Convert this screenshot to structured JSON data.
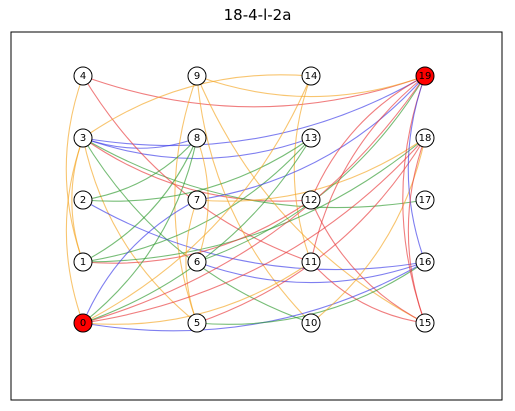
{
  "title": "18-4-l-2a",
  "colors": {
    "red": "#e8393b",
    "blue": "#3a3ae8",
    "green": "#2e9a2e",
    "orange": "#f5a623",
    "highlight_node": "#ff0000"
  },
  "nodes": [
    {
      "id": "0",
      "highlight": true
    },
    {
      "id": "1"
    },
    {
      "id": "2"
    },
    {
      "id": "3"
    },
    {
      "id": "4"
    },
    {
      "id": "5"
    },
    {
      "id": "6"
    },
    {
      "id": "7"
    },
    {
      "id": "8"
    },
    {
      "id": "9"
    },
    {
      "id": "10"
    },
    {
      "id": "11"
    },
    {
      "id": "12"
    },
    {
      "id": "13"
    },
    {
      "id": "14"
    },
    {
      "id": "15"
    },
    {
      "id": "16"
    },
    {
      "id": "17"
    },
    {
      "id": "18"
    },
    {
      "id": "19",
      "highlight": true
    }
  ],
  "edges": [
    {
      "from": "3",
      "to": "19",
      "color": "blue"
    },
    {
      "from": "3",
      "to": "8",
      "color": "blue"
    },
    {
      "from": "3",
      "to": "12",
      "color": "red"
    },
    {
      "from": "3",
      "to": "13",
      "color": "blue"
    },
    {
      "from": "3",
      "to": "17",
      "color": "green"
    },
    {
      "from": "3",
      "to": "1",
      "color": "orange"
    },
    {
      "from": "3",
      "to": "0",
      "color": "orange"
    },
    {
      "from": "3",
      "to": "5",
      "color": "orange"
    },
    {
      "from": "3",
      "to": "10",
      "color": "green"
    },
    {
      "from": "4",
      "to": "19",
      "color": "red"
    },
    {
      "from": "4",
      "to": "1",
      "color": "orange"
    },
    {
      "from": "4",
      "to": "11",
      "color": "red"
    },
    {
      "from": "9",
      "to": "19",
      "color": "orange"
    },
    {
      "from": "9",
      "to": "5",
      "color": "orange"
    },
    {
      "from": "9",
      "to": "10",
      "color": "orange"
    },
    {
      "from": "9",
      "to": "15",
      "color": "orange"
    },
    {
      "from": "14",
      "to": "3",
      "color": "orange"
    },
    {
      "from": "14",
      "to": "11",
      "color": "orange"
    },
    {
      "from": "2",
      "to": "8",
      "color": "green"
    },
    {
      "from": "2",
      "to": "16",
      "color": "blue"
    },
    {
      "from": "2",
      "to": "13",
      "color": "green"
    },
    {
      "from": "1",
      "to": "8",
      "color": "green"
    },
    {
      "from": "1",
      "to": "13",
      "color": "green"
    },
    {
      "from": "1",
      "to": "18",
      "color": "green"
    },
    {
      "from": "1",
      "to": "12",
      "color": "red"
    },
    {
      "from": "7",
      "to": "19",
      "color": "blue"
    },
    {
      "from": "7",
      "to": "0",
      "color": "blue"
    },
    {
      "from": "7",
      "to": "5",
      "color": "orange"
    },
    {
      "from": "7",
      "to": "18",
      "color": "orange"
    },
    {
      "from": "6",
      "to": "19",
      "color": "green"
    },
    {
      "from": "6",
      "to": "16",
      "color": "blue"
    },
    {
      "from": "6",
      "to": "8",
      "color": "orange"
    },
    {
      "from": "12",
      "to": "15",
      "color": "red"
    },
    {
      "from": "11",
      "to": "15",
      "color": "red"
    },
    {
      "from": "0",
      "to": "19",
      "color": "red"
    },
    {
      "from": "0",
      "to": "18",
      "color": "red"
    },
    {
      "from": "0",
      "to": "16",
      "color": "blue"
    },
    {
      "from": "0",
      "to": "13",
      "color": "green"
    },
    {
      "from": "0",
      "to": "11",
      "color": "orange"
    },
    {
      "from": "0",
      "to": "8",
      "color": "green"
    },
    {
      "from": "0",
      "to": "14",
      "color": "orange"
    },
    {
      "from": "5",
      "to": "18",
      "color": "red"
    },
    {
      "from": "5",
      "to": "16",
      "color": "green"
    },
    {
      "from": "10",
      "to": "18",
      "color": "orange"
    },
    {
      "from": "19",
      "to": "15",
      "color": "red"
    },
    {
      "from": "19",
      "to": "16",
      "color": "blue"
    },
    {
      "from": "19",
      "to": "12",
      "color": "red"
    },
    {
      "from": "19",
      "to": "11",
      "color": "red"
    },
    {
      "from": "18",
      "to": "15",
      "color": "red"
    }
  ]
}
